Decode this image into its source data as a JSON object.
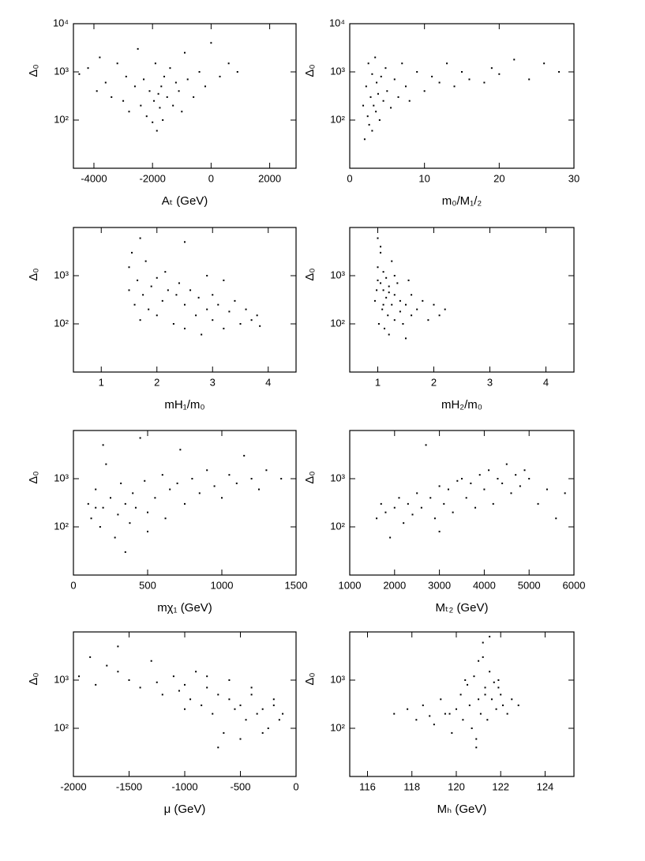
{
  "chart_data": [
    {
      "type": "scatter",
      "xlabel": "Aₜ (GeV)",
      "ylabel": "Δ₀",
      "log_y": true,
      "color": "#000000",
      "xlim": [
        -4700,
        2900
      ],
      "ylim": [
        10,
        10000
      ],
      "xticks": [
        -4000,
        -2000,
        0,
        2000
      ],
      "yticks": [
        {
          "value": 100,
          "label": "10²"
        },
        {
          "value": 1000,
          "label": "10³"
        },
        {
          "value": 10000,
          "label": "10⁴"
        }
      ],
      "x": [
        -4500,
        -4200,
        -3900,
        -3800,
        -3600,
        -3400,
        -3200,
        -3000,
        -2900,
        -2800,
        -2600,
        -2500,
        -2400,
        -2300,
        -2200,
        -2100,
        -2000,
        -1950,
        -1900,
        -1850,
        -1800,
        -1750,
        -1700,
        -1650,
        -1600,
        -1500,
        -1400,
        -1300,
        -1200,
        -1100,
        -1000,
        -900,
        -800,
        -600,
        -400,
        -200,
        0,
        300,
        600,
        900
      ],
      "y": [
        900,
        1200,
        400,
        2000,
        600,
        300,
        1500,
        250,
        800,
        150,
        500,
        3000,
        200,
        700,
        120,
        400,
        90,
        250,
        1500,
        60,
        350,
        180,
        500,
        100,
        800,
        300,
        1200,
        200,
        600,
        400,
        150,
        2500,
        700,
        300,
        1000,
        500,
        4000,
        800,
        1500,
        1000
      ]
    },
    {
      "type": "scatter",
      "xlabel": "m₀/M₁/₂",
      "ylabel": "Δ₀",
      "log_y": true,
      "color": "#000000",
      "xlim": [
        0,
        30
      ],
      "ylim": [
        10,
        10000
      ],
      "xticks": [
        0,
        10,
        20,
        30
      ],
      "yticks": [
        {
          "value": 100,
          "label": "10²"
        },
        {
          "value": 1000,
          "label": "10³"
        },
        {
          "value": 10000,
          "label": "10⁴"
        }
      ],
      "x": [
        1.8,
        2,
        2.2,
        2.4,
        2.5,
        2.6,
        2.8,
        3,
        3,
        3.2,
        3.4,
        3.5,
        3.6,
        3.8,
        4,
        4.2,
        4.5,
        4.8,
        5,
        5.5,
        6,
        6.5,
        7,
        7.5,
        8,
        9,
        10,
        11,
        12,
        13,
        14,
        15,
        16,
        18,
        19,
        20,
        22,
        24,
        26,
        28
      ],
      "y": [
        200,
        40,
        500,
        120,
        1500,
        80,
        300,
        60,
        900,
        200,
        2000,
        150,
        600,
        350,
        100,
        800,
        250,
        1200,
        400,
        180,
        700,
        300,
        1500,
        500,
        250,
        1000,
        400,
        800,
        600,
        1500,
        500,
        1000,
        700,
        600,
        1200,
        900,
        1800,
        700,
        1500,
        1000
      ]
    },
    {
      "type": "scatter",
      "xlabel": "mH₁/m₀",
      "ylabel": "Δ₀",
      "log_y": true,
      "color": "#000000",
      "xlim": [
        0.5,
        4.5
      ],
      "ylim": [
        10,
        10000
      ],
      "xticks": [
        1,
        2,
        3,
        4
      ],
      "yticks": [
        {
          "value": 100,
          "label": "10²"
        },
        {
          "value": 1000,
          "label": "10³"
        }
      ],
      "x": [
        1.5,
        1.5,
        1.55,
        1.6,
        1.65,
        1.7,
        1.75,
        1.8,
        1.85,
        1.9,
        2,
        2,
        2.1,
        2.15,
        2.2,
        2.3,
        2.35,
        2.4,
        2.5,
        2.5,
        2.6,
        2.7,
        2.75,
        2.8,
        2.9,
        3,
        3,
        3.1,
        3.2,
        3.3,
        3.4,
        3.5,
        3.6,
        3.7,
        3.8,
        3.85,
        1.7,
        2.5,
        3.2,
        2.9
      ],
      "y": [
        500,
        1500,
        3000,
        250,
        800,
        120,
        400,
        2000,
        200,
        600,
        150,
        900,
        300,
        1200,
        500,
        100,
        400,
        700,
        80,
        250,
        500,
        150,
        350,
        60,
        200,
        120,
        400,
        250,
        80,
        180,
        300,
        100,
        200,
        120,
        150,
        90,
        6000,
        5000,
        800,
        1000
      ]
    },
    {
      "type": "scatter",
      "xlabel": "mH₂/m₀",
      "ylabel": "Δ₀",
      "log_y": true,
      "color": "#000000",
      "xlim": [
        0.5,
        4.5
      ],
      "ylim": [
        10,
        10000
      ],
      "xticks": [
        1,
        2,
        3,
        4
      ],
      "yticks": [
        {
          "value": 100,
          "label": "10²"
        },
        {
          "value": 1000,
          "label": "10³"
        }
      ],
      "x": [
        0.95,
        1,
        1,
        1.02,
        1.05,
        1.05,
        1.08,
        1.1,
        1.1,
        1.12,
        1.15,
        1.15,
        1.18,
        1.2,
        1.2,
        1.25,
        1.25,
        1.3,
        1.3,
        1.35,
        1.4,
        1.4,
        1.45,
        1.5,
        1.5,
        1.6,
        1.6,
        1.7,
        1.8,
        1.9,
        2,
        2.1,
        2.2,
        1.0,
        1.05,
        1.1,
        1.3,
        1.55,
        1.2,
        0.98
      ],
      "y": [
        300,
        1500,
        6000,
        100,
        700,
        3000,
        200,
        500,
        1200,
        80,
        350,
        900,
        150,
        60,
        600,
        250,
        2000,
        120,
        400,
        700,
        180,
        300,
        100,
        50,
        250,
        150,
        400,
        200,
        300,
        120,
        250,
        150,
        200,
        800,
        4000,
        250,
        1000,
        800,
        450,
        500
      ]
    },
    {
      "type": "scatter",
      "xlabel": "mχ₁ (GeV)",
      "ylabel": "Δ₀",
      "log_y": true,
      "color": "#000000",
      "xlim": [
        0,
        1500
      ],
      "ylim": [
        10,
        10000
      ],
      "xticks": [
        0,
        500,
        1000,
        1500
      ],
      "yticks": [
        {
          "value": 100,
          "label": "10²"
        },
        {
          "value": 1000,
          "label": "10³"
        }
      ],
      "x": [
        100,
        120,
        150,
        180,
        200,
        220,
        250,
        280,
        300,
        320,
        350,
        380,
        400,
        420,
        450,
        480,
        500,
        550,
        600,
        620,
        650,
        700,
        720,
        750,
        800,
        850,
        900,
        950,
        1000,
        1050,
        1100,
        1150,
        1200,
        1250,
        1300,
        1400,
        200,
        350,
        500,
        150
      ],
      "y": [
        300,
        150,
        600,
        100,
        250,
        2000,
        400,
        60,
        180,
        800,
        300,
        120,
        500,
        250,
        7000,
        900,
        200,
        400,
        1200,
        150,
        600,
        800,
        4000,
        300,
        1000,
        500,
        1500,
        700,
        400,
        1200,
        800,
        3000,
        1000,
        600,
        1500,
        1000,
        5000,
        30,
        80,
        250
      ]
    },
    {
      "type": "scatter",
      "xlabel": "Mₜ₂ (GeV)",
      "ylabel": "Δ₀",
      "log_y": true,
      "color": "#000000",
      "xlim": [
        1000,
        6000
      ],
      "ylim": [
        10,
        10000
      ],
      "xticks": [
        1000,
        2000,
        3000,
        4000,
        5000,
        6000
      ],
      "yticks": [
        {
          "value": 100,
          "label": "10²"
        },
        {
          "value": 1000,
          "label": "10³"
        }
      ],
      "x": [
        1600,
        1700,
        1800,
        1900,
        2000,
        2100,
        2200,
        2300,
        2400,
        2500,
        2600,
        2700,
        2800,
        2900,
        3000,
        3100,
        3200,
        3300,
        3400,
        3500,
        3600,
        3700,
        3800,
        3900,
        4000,
        4100,
        4200,
        4300,
        4400,
        4500,
        4600,
        4700,
        4800,
        4900,
        5000,
        5200,
        5400,
        5600,
        5800,
        3000
      ],
      "y": [
        150,
        300,
        200,
        60,
        250,
        400,
        120,
        300,
        180,
        500,
        250,
        5000,
        400,
        150,
        700,
        300,
        600,
        200,
        900,
        1000,
        400,
        800,
        250,
        1200,
        600,
        1500,
        300,
        1000,
        800,
        2000,
        500,
        1200,
        700,
        1500,
        1000,
        300,
        600,
        150,
        500,
        80
      ]
    },
    {
      "type": "scatter",
      "xlabel": "μ (GeV)",
      "ylabel": "Δ₀",
      "log_y": true,
      "color": "#000000",
      "xlim": [
        -2000,
        0
      ],
      "ylim": [
        10,
        10000
      ],
      "xticks": [
        -2000,
        -1500,
        -1000,
        -500,
        0
      ],
      "yticks": [
        {
          "value": 100,
          "label": "10²"
        },
        {
          "value": 1000,
          "label": "10³"
        }
      ],
      "x": [
        -1950,
        -1850,
        -1800,
        -1700,
        -1600,
        -1500,
        -1400,
        -1300,
        -1250,
        -1200,
        -1100,
        -1050,
        -1000,
        -950,
        -900,
        -850,
        -800,
        -750,
        -700,
        -650,
        -600,
        -550,
        -500,
        -450,
        -400,
        -350,
        -300,
        -250,
        -200,
        -150,
        -120,
        -700,
        -500,
        -300,
        -1000,
        -600,
        -400,
        -200,
        -800,
        -1600
      ],
      "y": [
        1200,
        3000,
        800,
        2000,
        1500,
        1000,
        700,
        2500,
        900,
        500,
        1200,
        600,
        800,
        400,
        1500,
        300,
        700,
        200,
        500,
        80,
        400,
        250,
        300,
        150,
        500,
        200,
        250,
        100,
        300,
        150,
        200,
        40,
        60,
        80,
        250,
        1000,
        700,
        400,
        1200,
        5000
      ]
    },
    {
      "type": "scatter",
      "xlabel": "Mₕ (GeV)",
      "ylabel": "Δ₀",
      "log_y": true,
      "color": "#000000",
      "xlim": [
        115.2,
        125.3
      ],
      "ylim": [
        10,
        10000
      ],
      "xticks": [
        116,
        118,
        120,
        122,
        124
      ],
      "yticks": [
        {
          "value": 100,
          "label": "10²"
        },
        {
          "value": 1000,
          "label": "10³"
        }
      ],
      "x": [
        117.2,
        117.8,
        118.2,
        118.5,
        118.8,
        119,
        119.3,
        119.5,
        119.8,
        120,
        120.2,
        120.3,
        120.5,
        120.6,
        120.8,
        120.9,
        121,
        121,
        121.1,
        121.2,
        121.3,
        121.4,
        121.5,
        121.6,
        121.7,
        121.8,
        121.9,
        122,
        122.1,
        122.3,
        122.5,
        122.8,
        120.7,
        121.2,
        121.5,
        120.4,
        119.7,
        121.9,
        120.9,
        121.3
      ],
      "y": [
        200,
        250,
        150,
        300,
        180,
        120,
        400,
        200,
        80,
        250,
        500,
        150,
        800,
        300,
        1200,
        40,
        400,
        2500,
        200,
        6000,
        700,
        150,
        1500,
        400,
        900,
        250,
        1000,
        500,
        300,
        200,
        400,
        300,
        100,
        3000,
        8000,
        1000,
        200,
        700,
        60,
        500
      ]
    }
  ]
}
